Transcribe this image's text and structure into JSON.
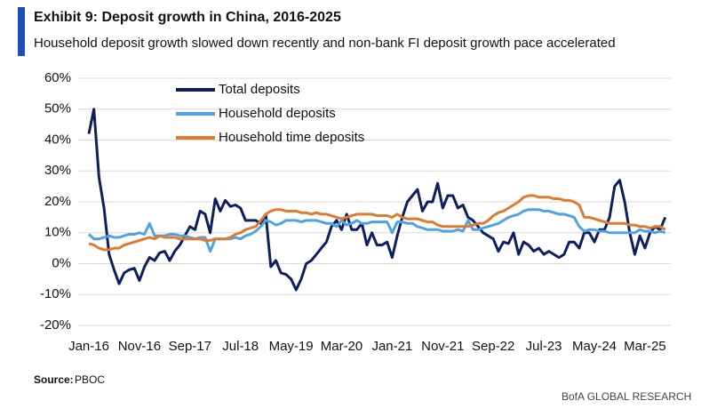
{
  "chart_data": {
    "type": "line",
    "title": "Exhibit 9: Deposit growth in China, 2016-2025",
    "subtitle": "Household deposit growth slowed down recently and non-bank FI deposit growth pace accelerated",
    "source_label": "Source:",
    "source": "PBOC",
    "brand": "BofA GLOBAL RESEARCH",
    "categories": [
      "Jan-16",
      null,
      null,
      null,
      null,
      null,
      null,
      null,
      null,
      null,
      "Nov-16",
      null,
      null,
      null,
      null,
      null,
      null,
      null,
      null,
      null,
      "Sep-17",
      null,
      null,
      null,
      null,
      null,
      null,
      null,
      null,
      null,
      "Jul-18",
      null,
      null,
      null,
      null,
      null,
      null,
      null,
      null,
      null,
      "May-19",
      null,
      null,
      null,
      null,
      null,
      null,
      null,
      null,
      null,
      "Mar-20",
      null,
      null,
      null,
      null,
      null,
      null,
      null,
      null,
      null,
      "Jan-21",
      null,
      null,
      null,
      null,
      null,
      null,
      null,
      null,
      null,
      "Nov-21",
      null,
      null,
      null,
      null,
      null,
      null,
      null,
      null,
      null,
      "Sep-22",
      null,
      null,
      null,
      null,
      null,
      null,
      null,
      null,
      null,
      "Jul-23",
      null,
      null,
      null,
      null,
      null,
      null,
      null,
      null,
      null,
      "May-24",
      null,
      null,
      null,
      null,
      null,
      null,
      null,
      null,
      null,
      "Mar-25",
      null,
      null,
      null,
      null
    ],
    "series": [
      {
        "name": "Total deposits",
        "color": "#0d1f5c",
        "values": [
          42,
          50,
          28,
          18,
          3,
          -2,
          -6.5,
          -3,
          -2,
          -1.5,
          -5.5,
          -1,
          2,
          1,
          3.5,
          4,
          1,
          4,
          6,
          9,
          12,
          11,
          17,
          16,
          10,
          21,
          17,
          20.5,
          18.5,
          19,
          18,
          14,
          14,
          14,
          13,
          16,
          -1,
          1,
          -3,
          -3.5,
          -5,
          -8.5,
          -5,
          0,
          1,
          3,
          5,
          7,
          12,
          14,
          11,
          16,
          11,
          11,
          13,
          6,
          10,
          6,
          6,
          7,
          2,
          9,
          15,
          20,
          22,
          24,
          17,
          20,
          20,
          26,
          18,
          22,
          22,
          18,
          19,
          15,
          14,
          12,
          10,
          9,
          8,
          4,
          7,
          6.5,
          10,
          3,
          7,
          6,
          4,
          5,
          3,
          4,
          3,
          2,
          3,
          7,
          7,
          5,
          10,
          10,
          7,
          11,
          11,
          15,
          25,
          27,
          20,
          10,
          3,
          9,
          5,
          10,
          12,
          11,
          15
        ]
      },
      {
        "name": "Household deposits",
        "color": "#4ea3e0",
        "values": [
          9.5,
          8,
          8,
          8.5,
          9,
          8.5,
          8.5,
          9,
          9.5,
          9.5,
          10,
          9.5,
          13,
          9,
          9,
          9,
          9.5,
          9.5,
          9,
          9,
          8.5,
          8,
          8.5,
          8.5,
          4,
          8,
          8,
          8,
          8,
          8.5,
          8,
          9,
          9.5,
          10.5,
          12,
          14,
          13.5,
          12.5,
          13,
          14,
          14,
          14,
          13.5,
          14,
          14,
          14,
          13.5,
          13,
          13,
          12,
          14,
          12.5,
          13,
          14,
          13,
          13,
          13.5,
          13.5,
          13.5,
          13.5,
          10,
          13.5,
          13.5,
          13,
          13,
          12,
          11.5,
          11,
          11,
          11,
          10.5,
          10.5,
          10.5,
          11,
          10.5,
          14,
          11,
          11,
          11.5,
          12,
          12.5,
          13,
          14,
          15,
          15.5,
          16,
          17,
          17.5,
          17.5,
          17.5,
          17,
          17,
          16.5,
          16,
          16,
          15.5,
          15,
          12,
          10.5,
          11,
          11,
          10.5,
          10.5,
          10,
          10,
          10,
          10,
          10,
          10,
          11,
          10.5,
          10.5,
          10,
          10.5,
          10
        ]
      },
      {
        "name": "Household time deposits",
        "color": "#e07a2e",
        "values": [
          6.5,
          6,
          5,
          4.5,
          4.5,
          5,
          5,
          6,
          6.5,
          7,
          7.5,
          8,
          8.5,
          8,
          9,
          8.5,
          8.5,
          8.5,
          8,
          8,
          8,
          8,
          8,
          7.5,
          7.5,
          8,
          8,
          8,
          8.5,
          9.5,
          10,
          11,
          11.5,
          12,
          14,
          16,
          17,
          17.5,
          17.5,
          17,
          17,
          17,
          16.5,
          16.5,
          16,
          16.5,
          16,
          16,
          15.5,
          15,
          14.5,
          15,
          15.5,
          16,
          16,
          16,
          16,
          15.5,
          15.5,
          15.5,
          15,
          16,
          15,
          14.5,
          14.5,
          14.5,
          14,
          13.5,
          13.5,
          12.5,
          12,
          12,
          12,
          12,
          12,
          12,
          12.5,
          13,
          13,
          14,
          15.5,
          16.5,
          17,
          18,
          19,
          20,
          21.5,
          22,
          22,
          21.5,
          21.5,
          21.5,
          21,
          21,
          20.5,
          20.5,
          20,
          19,
          15,
          15,
          14.5,
          14,
          13.5,
          13,
          13,
          13,
          13,
          12.5,
          12.5,
          12,
          12,
          11.5,
          12,
          12,
          11
        ]
      }
    ],
    "ylim": [
      -20,
      60
    ],
    "yticks": [
      {
        "value": -20,
        "label": "-20%"
      },
      {
        "value": -10,
        "label": "-10%"
      },
      {
        "value": 0,
        "label": "0%"
      },
      {
        "value": 10,
        "label": "10%"
      },
      {
        "value": 20,
        "label": "20%"
      },
      {
        "value": 30,
        "label": "30%"
      },
      {
        "value": 40,
        "label": "40%"
      },
      {
        "value": 50,
        "label": "50%"
      },
      {
        "value": 60,
        "label": "60%"
      }
    ],
    "grid": true,
    "legend": "upper-left"
  }
}
